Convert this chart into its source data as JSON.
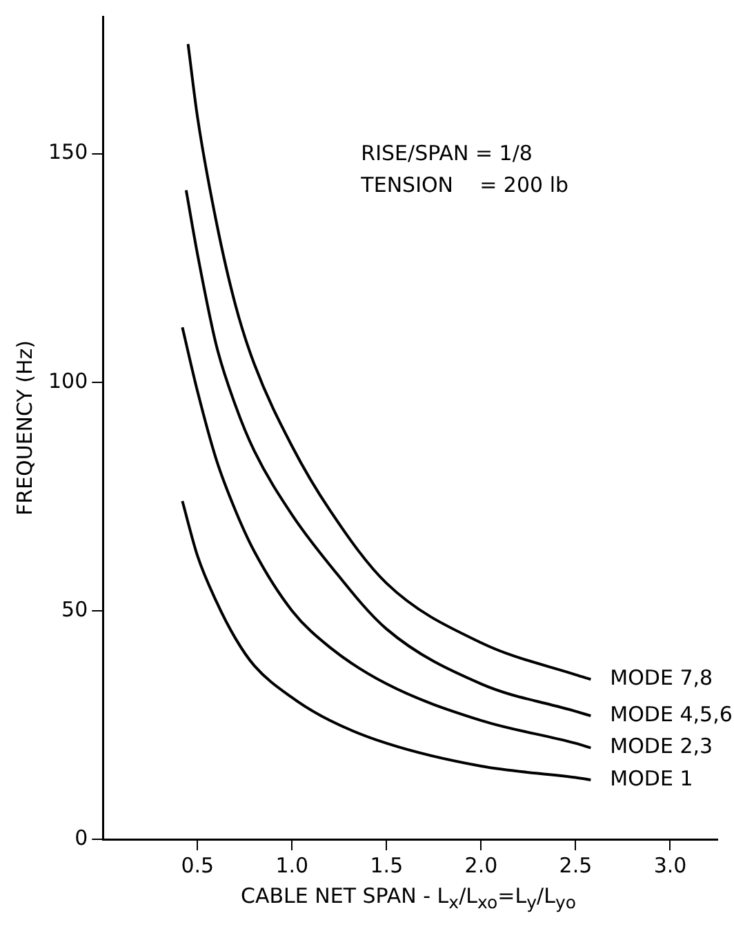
{
  "chart_data": {
    "type": "line",
    "xlabel": "CABLE NET SPAN - L$_{x}$/L$_{xo}$=L$_{y}$/L$_{yo}$",
    "ylabel": "FREQUENCY (Hz)",
    "annotations": [
      "RISE/SPAN = 1/8",
      "TENSION   = 200 lb"
    ],
    "x": [
      0.42,
      0.5,
      0.6,
      0.7,
      0.8,
      1.0,
      1.2,
      1.5,
      2.0,
      2.5,
      2.58
    ],
    "series": [
      {
        "name": "MODE 1",
        "color": "#000000",
        "values": [
          74,
          62,
          52,
          44,
          38,
          31,
          26,
          21,
          16,
          13.5,
          13
        ]
      },
      {
        "name": "MODE 2,3",
        "color": "#000000",
        "values": [
          112,
          98,
          83,
          72,
          63,
          50,
          42,
          34,
          26,
          21,
          20
        ]
      },
      {
        "name": "MODE 4,5,6",
        "color": "#000000",
        "x": [
          0.44,
          0.5,
          0.6,
          0.7,
          0.8,
          1.0,
          1.2,
          1.5,
          2.0,
          2.5,
          2.58
        ],
        "values": [
          142,
          128,
          108,
          95,
          85,
          71,
          60,
          46,
          34,
          28,
          27
        ]
      },
      {
        "name": "MODE 7,8",
        "color": "#000000",
        "x": [
          0.45,
          0.5,
          0.6,
          0.7,
          0.8,
          1.0,
          1.2,
          1.5,
          2.0,
          2.5,
          2.58
        ],
        "values": [
          174,
          158,
          135,
          117,
          104,
          86,
          72,
          56,
          43,
          36,
          35
        ]
      }
    ],
    "xlim": [
      0,
      3.25
    ],
    "ylim": [
      0,
      180
    ],
    "xticks": [
      0.5,
      {
        "value": 1,
        "label": "1.0"
      },
      1.5,
      {
        "value": 2,
        "label": "2.0"
      },
      2.5,
      {
        "value": 3,
        "label": "3.0"
      }
    ],
    "yticks": [
      0,
      50,
      100,
      150
    ],
    "grid": false,
    "legend": false,
    "marker": "none",
    "line_style": "solid"
  }
}
